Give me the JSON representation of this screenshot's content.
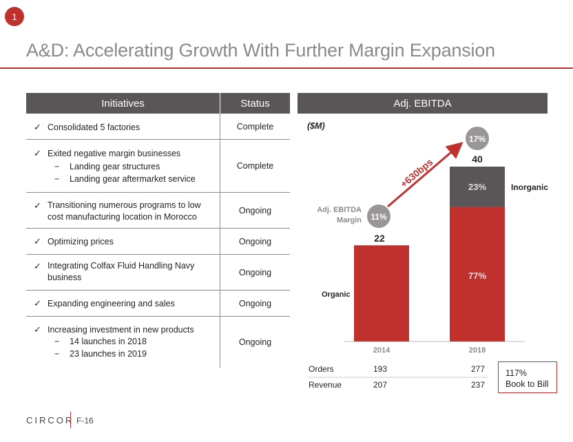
{
  "slide_number": "1",
  "title": "A&D: Accelerating Growth With Further Margin Expansion",
  "initiatives_table": {
    "headers": [
      "Initiatives",
      "Status"
    ],
    "rows": [
      {
        "text": "Consolidated 5 factories",
        "sub": [],
        "status": "Complete"
      },
      {
        "text": "Exited negative margin businesses",
        "sub": [
          "Landing gear structures",
          "Landing gear aftermarket service"
        ],
        "status": "Complete"
      },
      {
        "text": "Transitioning numerous programs to low cost manufacturing location in Morocco",
        "sub": [],
        "status": "Ongoing"
      },
      {
        "text": "Optimizing prices",
        "sub": [],
        "status": "Ongoing"
      },
      {
        "text": "Integrating Colfax Fluid Handling Navy business",
        "sub": [],
        "status": "Ongoing"
      },
      {
        "text": "Expanding engineering and sales",
        "sub": [],
        "status": "Ongoing"
      },
      {
        "text": "Increasing investment in new products",
        "sub": [
          "14 launches in 2018",
          "23 launches in 2019"
        ],
        "status": "Ongoing"
      }
    ],
    "check_symbol": "✓",
    "dash_symbol": "−"
  },
  "chart_data": {
    "type": "bar",
    "title": "Adj. EBITDA",
    "unit_label": "($M)",
    "categories": [
      "2014",
      "2018"
    ],
    "totals": [
      22,
      40
    ],
    "total_labels": [
      "22",
      "40"
    ],
    "series": [
      {
        "name": "Organic",
        "values": [
          22,
          30.8
        ],
        "color": "#c0312e"
      },
      {
        "name": "Inorganic",
        "values": [
          0,
          9.2
        ],
        "color": "#5a5556"
      }
    ],
    "segment_labels": {
      "organic_2018": "77%",
      "inorganic_2018": "23%"
    },
    "margins": {
      "label": "Adj. EBITDA Margin",
      "label_lines": [
        "Adj. EBITDA",
        "Margin"
      ],
      "values": [
        "11%",
        "17%"
      ]
    },
    "change_label": "+630bps",
    "ylim": [
      0,
      40
    ],
    "colors": {
      "organic": "#c0312e",
      "inorganic": "#5a5556",
      "margin_circle": "#9a9596",
      "axis_label": "#8a8a8a"
    }
  },
  "metrics": {
    "rows": [
      {
        "label": "Orders",
        "values": [
          "193",
          "277"
        ]
      },
      {
        "label": "Revenue",
        "values": [
          "207",
          "237"
        ]
      }
    ]
  },
  "book_to_bill": {
    "line1": "117%",
    "line2": "Book to Bill"
  },
  "footer": {
    "logo": "CIRCOR",
    "page": "F-16"
  },
  "colors": {
    "accent": "#c0312e",
    "header_bg": "#5a5556",
    "title": "#8a8a8a"
  }
}
